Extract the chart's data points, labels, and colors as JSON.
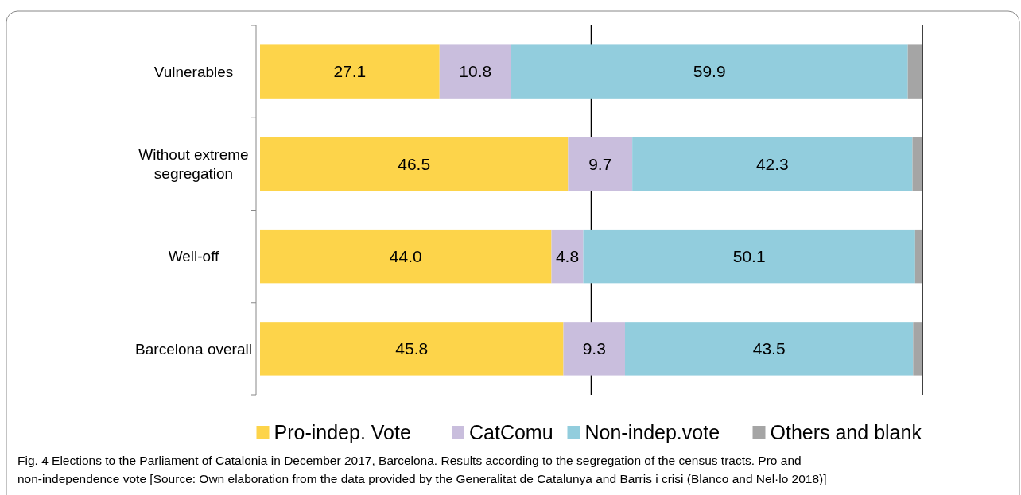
{
  "chart_data": {
    "type": "bar",
    "orientation": "horizontal",
    "stacked": true,
    "categories": [
      "Vulnerables",
      "Without extreme segregation",
      "Well-off",
      "Barcelona overall"
    ],
    "series": [
      {
        "name": "Pro-indep. Vote",
        "color": "#fdd44a",
        "values": [
          27.1,
          46.5,
          44.0,
          45.8
        ],
        "value_labels": [
          "27.1",
          "46.5",
          "44.0",
          "45.8"
        ]
      },
      {
        "name": "CatComu",
        "color": "#c9bedd",
        "values": [
          10.8,
          9.7,
          4.8,
          9.3
        ],
        "value_labels": [
          "10.8",
          "9.7",
          "4.8",
          "9.3"
        ]
      },
      {
        "name": "Non-indep.vote",
        "color": "#92cddd",
        "values": [
          59.9,
          42.3,
          50.1,
          43.5
        ],
        "value_labels": [
          "59.9",
          "42.3",
          "50.1",
          "43.5"
        ]
      },
      {
        "name": "Others and blank",
        "color": "#a5a5a5",
        "values": [
          2.2,
          1.5,
          1.1,
          1.4
        ],
        "value_labels": [
          null,
          null,
          null,
          null
        ]
      }
    ],
    "xlim": [
      0,
      100
    ],
    "ref_lines": [
      {
        "axis": "x",
        "value": 50,
        "color": "#000000"
      },
      {
        "axis": "x",
        "value": 100,
        "color": "#000000"
      }
    ],
    "tick_labels": "y",
    "legend": "bottom",
    "annotations": [
      "Fig. 4  Elections to the Parliament of Catalonia in December 2017, Barcelona. Results according to the segregation of the census tracts. Pro and non-independence vote [Source: Own elaboration from the data provided by the Generalitat de Catalunya and Barris i crisi (Blanco and Nel·lo 2018)]"
    ]
  }
}
